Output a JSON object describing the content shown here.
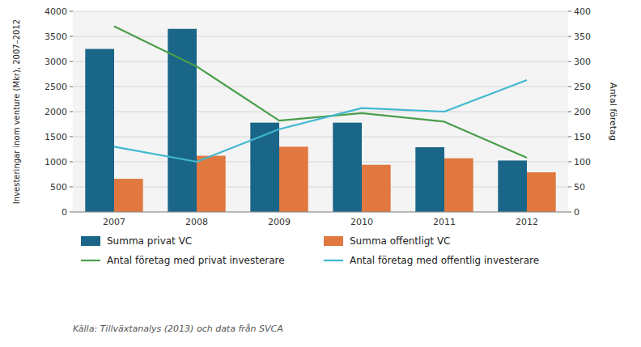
{
  "chart_data": {
    "type": "bar",
    "categories": [
      "2007",
      "2008",
      "2009",
      "2010",
      "2011",
      "2012"
    ],
    "series": [
      {
        "name": "Summa privat VC",
        "color": "#1a6688",
        "type": "bar",
        "values": [
          3250,
          3650,
          1780,
          1780,
          1290,
          1025
        ]
      },
      {
        "name": "Summa offentligt VC",
        "color": "#e07840",
        "type": "bar",
        "values": [
          660,
          1120,
          1300,
          940,
          1070,
          790
        ]
      },
      {
        "name": "Antal företag med privat investerare",
        "color": "#4a9e4a",
        "type": "line",
        "axis": "y2",
        "values": [
          370,
          290,
          182,
          197,
          180,
          108
        ]
      },
      {
        "name": "Antal företag med offentlig investerare",
        "color": "#40b8d0",
        "type": "line",
        "axis": "y2",
        "values": [
          130,
          100,
          165,
          207,
          200,
          263
        ]
      }
    ],
    "ylabel": "Investeringar inom venture (Mkr), 2007–2012",
    "y2label": "Antal företag",
    "ylim": [
      0,
      4000
    ],
    "yticks": [
      0,
      500,
      1000,
      1500,
      2000,
      2500,
      3000,
      3500,
      4000
    ],
    "y2lim": [
      0,
      400
    ],
    "y2ticks": [
      0,
      50,
      100,
      150,
      200,
      250,
      300,
      350,
      400
    ],
    "grid": true,
    "legend": "bottom",
    "annotations": [
      "Källa: Tillväxtanalys (2013) och data från SVCA"
    ]
  }
}
